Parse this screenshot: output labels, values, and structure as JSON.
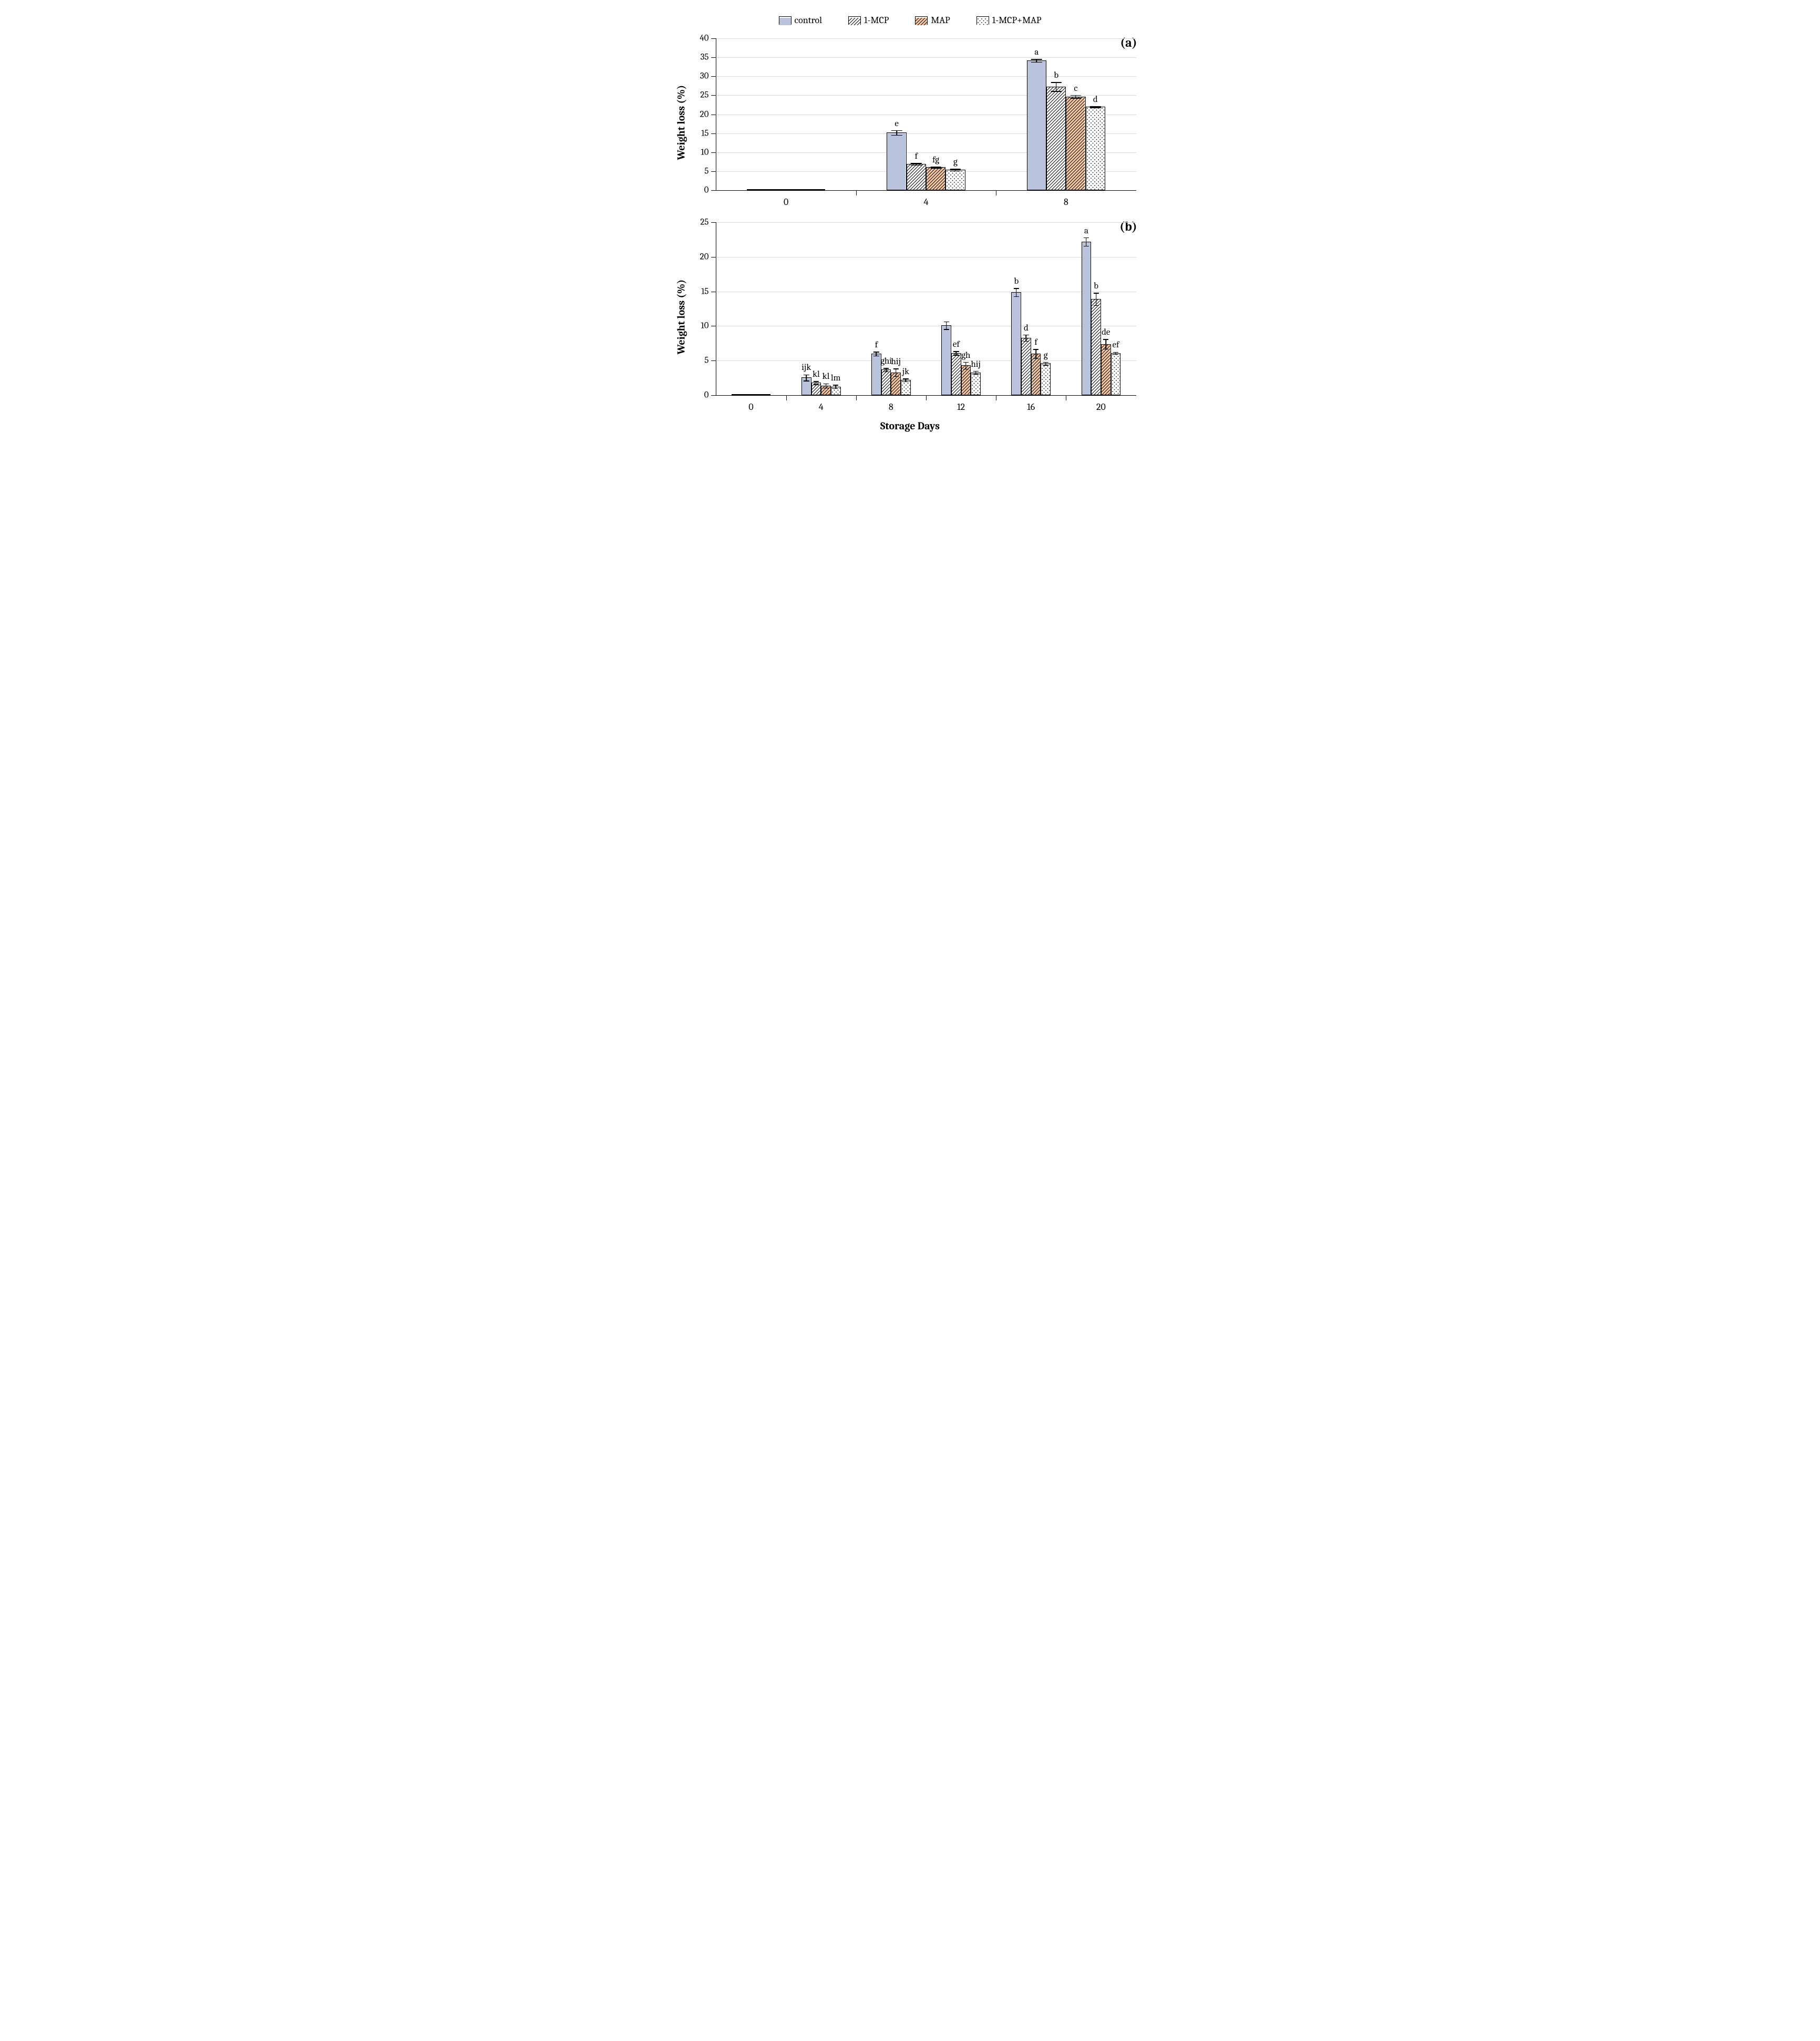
{
  "legend": {
    "items": [
      {
        "key": "control",
        "label": "control",
        "fill": "#b9c3de",
        "pattern": "solid"
      },
      {
        "key": "mcp",
        "label": "1-MCP",
        "fill": "#ffffff",
        "pattern": "diag-black"
      },
      {
        "key": "map",
        "label": "MAP",
        "fill": "#f6c9a3",
        "pattern": "diag-black"
      },
      {
        "key": "combo",
        "label": "1-MCP+MAP",
        "fill": "#ffffff",
        "pattern": "dots"
      }
    ]
  },
  "global": {
    "xaxis_label": "Storage Days",
    "yaxis_label": "Weight loss (%)",
    "font_family": "Cambria, Georgia, serif",
    "title_fontsize": 20,
    "tick_fontsize": 17,
    "grid_color": "#d9d9d9",
    "axis_color": "#000000",
    "background_color": "#ffffff",
    "bar_border_color": "#000000",
    "bar_group_width": 0.56,
    "bar_gap_within_group": 0
  },
  "panel_a": {
    "tag": "(a)",
    "type": "bar",
    "ylim": [
      0,
      40
    ],
    "ytick_step": 5,
    "categories": [
      "0",
      "4",
      "8"
    ],
    "series": [
      {
        "key": "control",
        "values": [
          0.0,
          15.2,
          34.2
        ],
        "err": [
          0.0,
          0.6,
          0.4
        ],
        "sig": [
          "",
          "e",
          "a"
        ]
      },
      {
        "key": "mcp",
        "values": [
          0.0,
          6.9,
          27.3
        ],
        "err": [
          0.0,
          0.25,
          1.2
        ],
        "sig": [
          "",
          "f",
          "b"
        ]
      },
      {
        "key": "map",
        "values": [
          0.0,
          6.1,
          24.7
        ],
        "err": [
          0.0,
          0.15,
          0.4
        ],
        "sig": [
          "",
          "fg",
          "c"
        ]
      },
      {
        "key": "combo",
        "values": [
          0.0,
          5.4,
          22.0
        ],
        "err": [
          0.0,
          0.25,
          0.2
        ],
        "sig": [
          "",
          "g",
          "d"
        ]
      }
    ]
  },
  "panel_b": {
    "tag": "(b)",
    "type": "bar",
    "ylim": [
      0,
      25
    ],
    "ytick_step": 5,
    "categories": [
      "0",
      "4",
      "8",
      "12",
      "16",
      "20"
    ],
    "series": [
      {
        "key": "control",
        "values": [
          0.02,
          2.55,
          6.0,
          10.1,
          14.9,
          22.2
        ],
        "err": [
          0.0,
          0.45,
          0.3,
          0.55,
          0.6,
          0.6
        ],
        "sig": [
          "",
          "ijk",
          "f",
          "",
          "b",
          "a"
        ]
      },
      {
        "key": "mcp",
        "values": [
          0.02,
          1.8,
          3.7,
          6.1,
          8.3,
          13.9
        ],
        "err": [
          0.0,
          0.22,
          0.25,
          0.25,
          0.45,
          0.9
        ],
        "sig": [
          "",
          "kl",
          "ghi",
          "ef",
          "d",
          "b"
        ]
      },
      {
        "key": "map",
        "values": [
          0.02,
          1.4,
          3.3,
          4.3,
          6.0,
          7.4
        ],
        "err": [
          0.0,
          0.3,
          0.55,
          0.5,
          0.65,
          0.7
        ],
        "sig": [
          "",
          "kl",
          "hij",
          "gh",
          "f",
          "de"
        ]
      },
      {
        "key": "combo",
        "values": [
          0.02,
          1.25,
          2.2,
          3.3,
          4.6,
          6.1
        ],
        "err": [
          0.0,
          0.25,
          0.2,
          0.2,
          0.2,
          0.15
        ],
        "sig": [
          "",
          "lm",
          "jk",
          "hij",
          "g",
          "ef"
        ]
      }
    ]
  }
}
